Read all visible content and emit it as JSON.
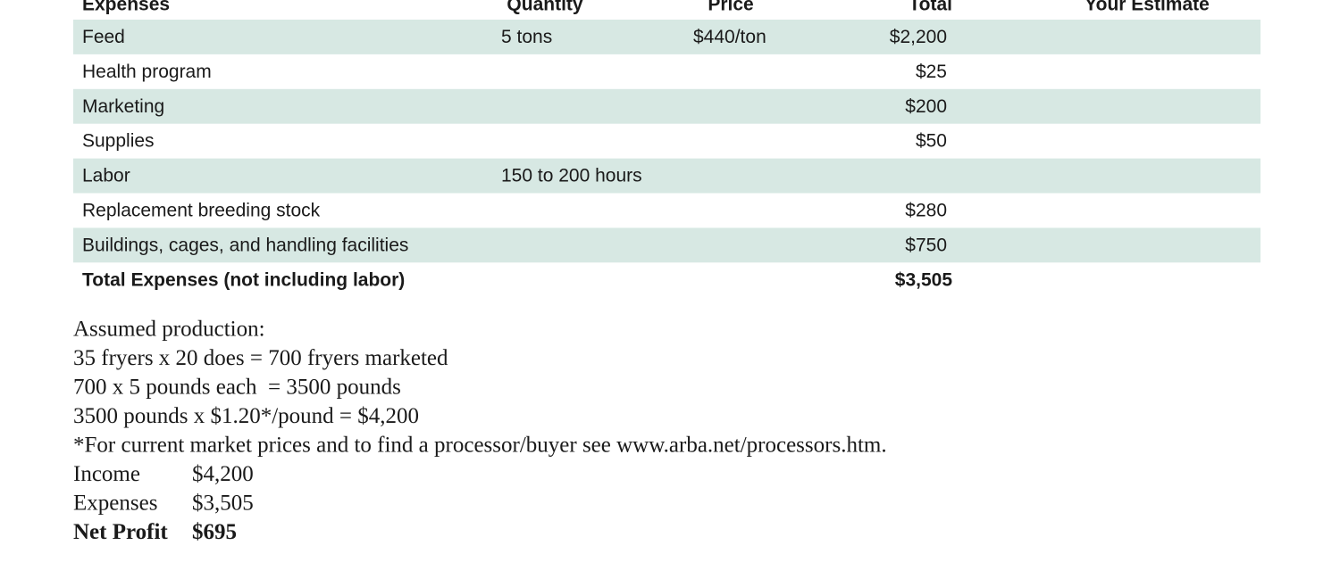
{
  "table": {
    "headers": [
      "Expenses",
      "Quantity",
      "Price",
      "Total",
      "Your Estimate"
    ],
    "rows": [
      {
        "item": "Feed",
        "quantity": "5 tons",
        "price": "$440/ton",
        "total": "$2,200"
      },
      {
        "item": "Health program",
        "total": "$25"
      },
      {
        "item": "Marketing",
        "total": "$200"
      },
      {
        "item": "Supplies",
        "total": "$50"
      },
      {
        "item": "Labor",
        "quantity": "150 to 200 hours"
      },
      {
        "item": "Replacement breeding stock",
        "total": "$280"
      },
      {
        "item": "Buildings, cages, and handling facilities",
        "total": "$750"
      }
    ],
    "total_row": {
      "item": "Total Expenses (not including labor)",
      "total": "$3,505"
    }
  },
  "notes": [
    "Assumed production:",
    "35 fryers x 20 does = 700 fryers marketed",
    "700 x 5 pounds each  = 3500 pounds",
    "3500 pounds x $1.20*/pound = $4,200",
    "*For current market prices and to find a processor/buyer see www.arba.net/processors.htm."
  ],
  "summary": [
    {
      "label": "Income",
      "value": "$4,200"
    },
    {
      "label": "Expenses",
      "value": "$3,505"
    },
    {
      "label": "Net Profit",
      "value": "$695"
    }
  ]
}
